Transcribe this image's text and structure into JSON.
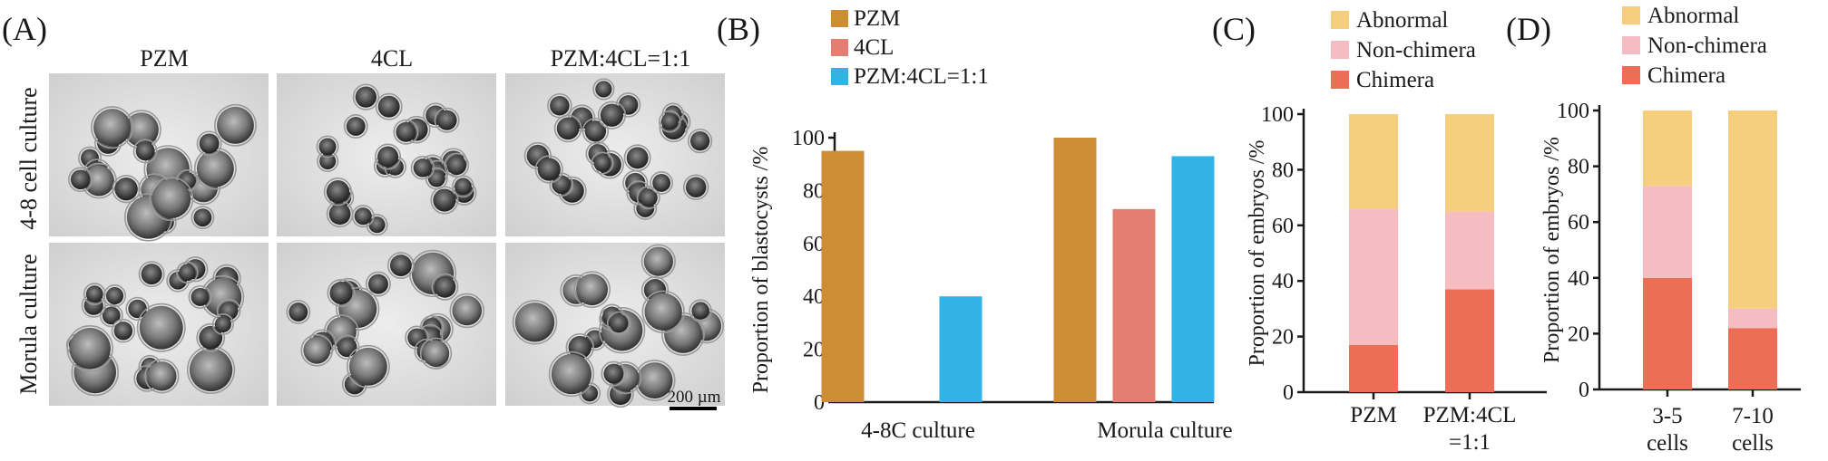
{
  "panels": {
    "a": {
      "label": "(A)",
      "columns": [
        "PZM",
        "4CL",
        "PZM:4CL=1:1"
      ],
      "rows": [
        "4-8 cell culture",
        "Morula culture"
      ],
      "scale_bar": "200 µm"
    },
    "b": {
      "label": "(B)"
    },
    "c": {
      "label": "(C)"
    },
    "d": {
      "label": "(D)"
    }
  },
  "colors": {
    "pzm": "#cc8d33",
    "fourcl": "#e47e72",
    "mix": "#31b3e6",
    "abnormal": "#f5cf7e",
    "nonchimera": "#f5bcc2",
    "chimera": "#eb6e55",
    "axis": "#1a1a1a"
  },
  "chart_data": [
    {
      "panel": "B",
      "type": "bar",
      "categories": [
        "4-8C culture",
        "Morula culture"
      ],
      "series": [
        {
          "name": "PZM",
          "values": [
            95,
            100
          ]
        },
        {
          "name": "4CL",
          "values": [
            0,
            73
          ]
        },
        {
          "name": "PZM:4CL=1:1",
          "values": [
            40,
            93
          ]
        }
      ],
      "ylabel": "Proportion of blastocysts /%",
      "ylim": [
        0,
        100
      ],
      "yticks": [
        0,
        20,
        40,
        60,
        80,
        100
      ],
      "legend": "top-left"
    },
    {
      "panel": "C",
      "type": "bar",
      "stacked": true,
      "categories": [
        "PZM",
        "PZM:4CL\n=1:1"
      ],
      "series": [
        {
          "name": "Chimera",
          "values": [
            17,
            37
          ]
        },
        {
          "name": "Non-chimera",
          "values": [
            49,
            28
          ]
        },
        {
          "name": "Abnormal",
          "values": [
            34,
            35
          ]
        }
      ],
      "legend_order": [
        "Abnormal",
        "Non-chimera",
        "Chimera"
      ],
      "ylabel": "Proportion of embryos /%",
      "ylim": [
        0,
        100
      ],
      "yticks": [
        0,
        20,
        40,
        60,
        80,
        100
      ],
      "legend": "top"
    },
    {
      "panel": "D",
      "type": "bar",
      "stacked": true,
      "categories": [
        "3-5\ncells",
        "7-10\ncells"
      ],
      "series": [
        {
          "name": "Chimera",
          "values": [
            40,
            22
          ]
        },
        {
          "name": "Non-chimera",
          "values": [
            33,
            7
          ]
        },
        {
          "name": "Abnormal",
          "values": [
            27,
            71
          ]
        }
      ],
      "legend_order": [
        "Abnormal",
        "Non-chimera",
        "Chimera"
      ],
      "ylabel": "Proportion of embryos /%",
      "ylim": [
        0,
        100
      ],
      "yticks": [
        0,
        20,
        40,
        60,
        80,
        100
      ],
      "legend": "top"
    }
  ]
}
